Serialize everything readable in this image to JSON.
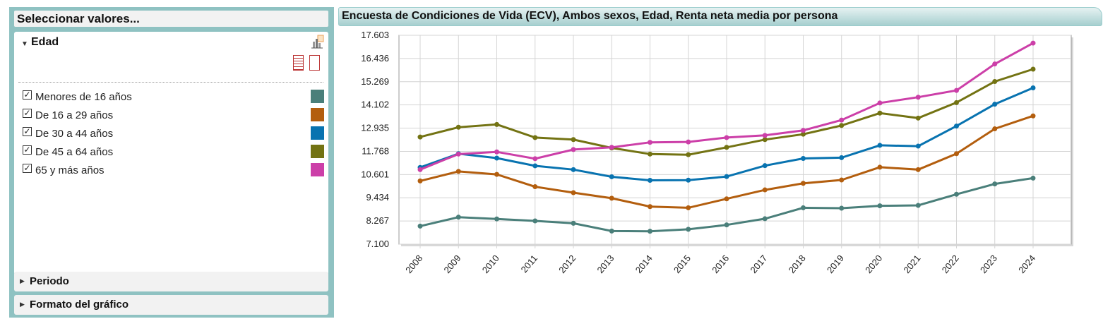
{
  "panel": {
    "title": "Seleccionar valores...",
    "edad_header": "Edad",
    "items": [
      {
        "label": "Menores de 16 años",
        "color": "#4a7f7a"
      },
      {
        "label": "De 16 a 29 años",
        "color": "#b35e0e"
      },
      {
        "label": "De 30 a 44 años",
        "color": "#0873b0"
      },
      {
        "label": "De 45 a 64 años",
        "color": "#737313"
      },
      {
        "label": "65 y más años",
        "color": "#cc3fa8"
      }
    ],
    "collapsed": [
      "Periodo",
      "Formato del gráfico"
    ]
  },
  "chart_data": {
    "type": "line",
    "title": "Encuesta de Condiciones de Vida (ECV), Ambos sexos, Edad, Renta neta media por persona",
    "x": [
      "2008",
      "2009",
      "2010",
      "2011",
      "2012",
      "2013",
      "2014",
      "2015",
      "2016",
      "2017",
      "2018",
      "2019",
      "2020",
      "2021",
      "2022",
      "2023",
      "2024"
    ],
    "yticks": [
      "7.100",
      "8.267",
      "9.434",
      "10.601",
      "11.768",
      "12.935",
      "14.102",
      "15.269",
      "16.436",
      "17.603"
    ],
    "ylim": [
      7100,
      17603
    ],
    "grid": true,
    "series": [
      {
        "name": "Menores de 16 años",
        "color": "#4a7f7a",
        "values": [
          8010,
          8460,
          8370,
          8270,
          8150,
          7760,
          7750,
          7850,
          8070,
          8380,
          8930,
          8910,
          9030,
          9050,
          9610,
          10130,
          10420
        ]
      },
      {
        "name": "De 16 a 29 años",
        "color": "#b35e0e",
        "values": [
          10280,
          10760,
          10610,
          9990,
          9690,
          9410,
          8990,
          8930,
          9380,
          9830,
          10160,
          10330,
          10970,
          10850,
          11650,
          12900,
          13550
        ]
      },
      {
        "name": "De 30 a 44 años",
        "color": "#0873b0",
        "values": [
          10960,
          11650,
          11430,
          11040,
          10850,
          10490,
          10310,
          10320,
          10500,
          11050,
          11410,
          11450,
          12070,
          12030,
          13040,
          14140,
          14960
        ]
      },
      {
        "name": "De 45 a 64 años",
        "color": "#737313",
        "values": [
          12490,
          12980,
          13120,
          12460,
          12360,
          11940,
          11630,
          11600,
          11970,
          12360,
          12630,
          13070,
          13690,
          13440,
          14220,
          15280,
          15900
        ]
      },
      {
        "name": "65 y más años",
        "color": "#cc3fa8",
        "values": [
          10850,
          11630,
          11740,
          11400,
          11860,
          11970,
          12220,
          12240,
          12460,
          12570,
          12820,
          13340,
          14200,
          14490,
          14830,
          16160,
          17210
        ]
      }
    ]
  }
}
